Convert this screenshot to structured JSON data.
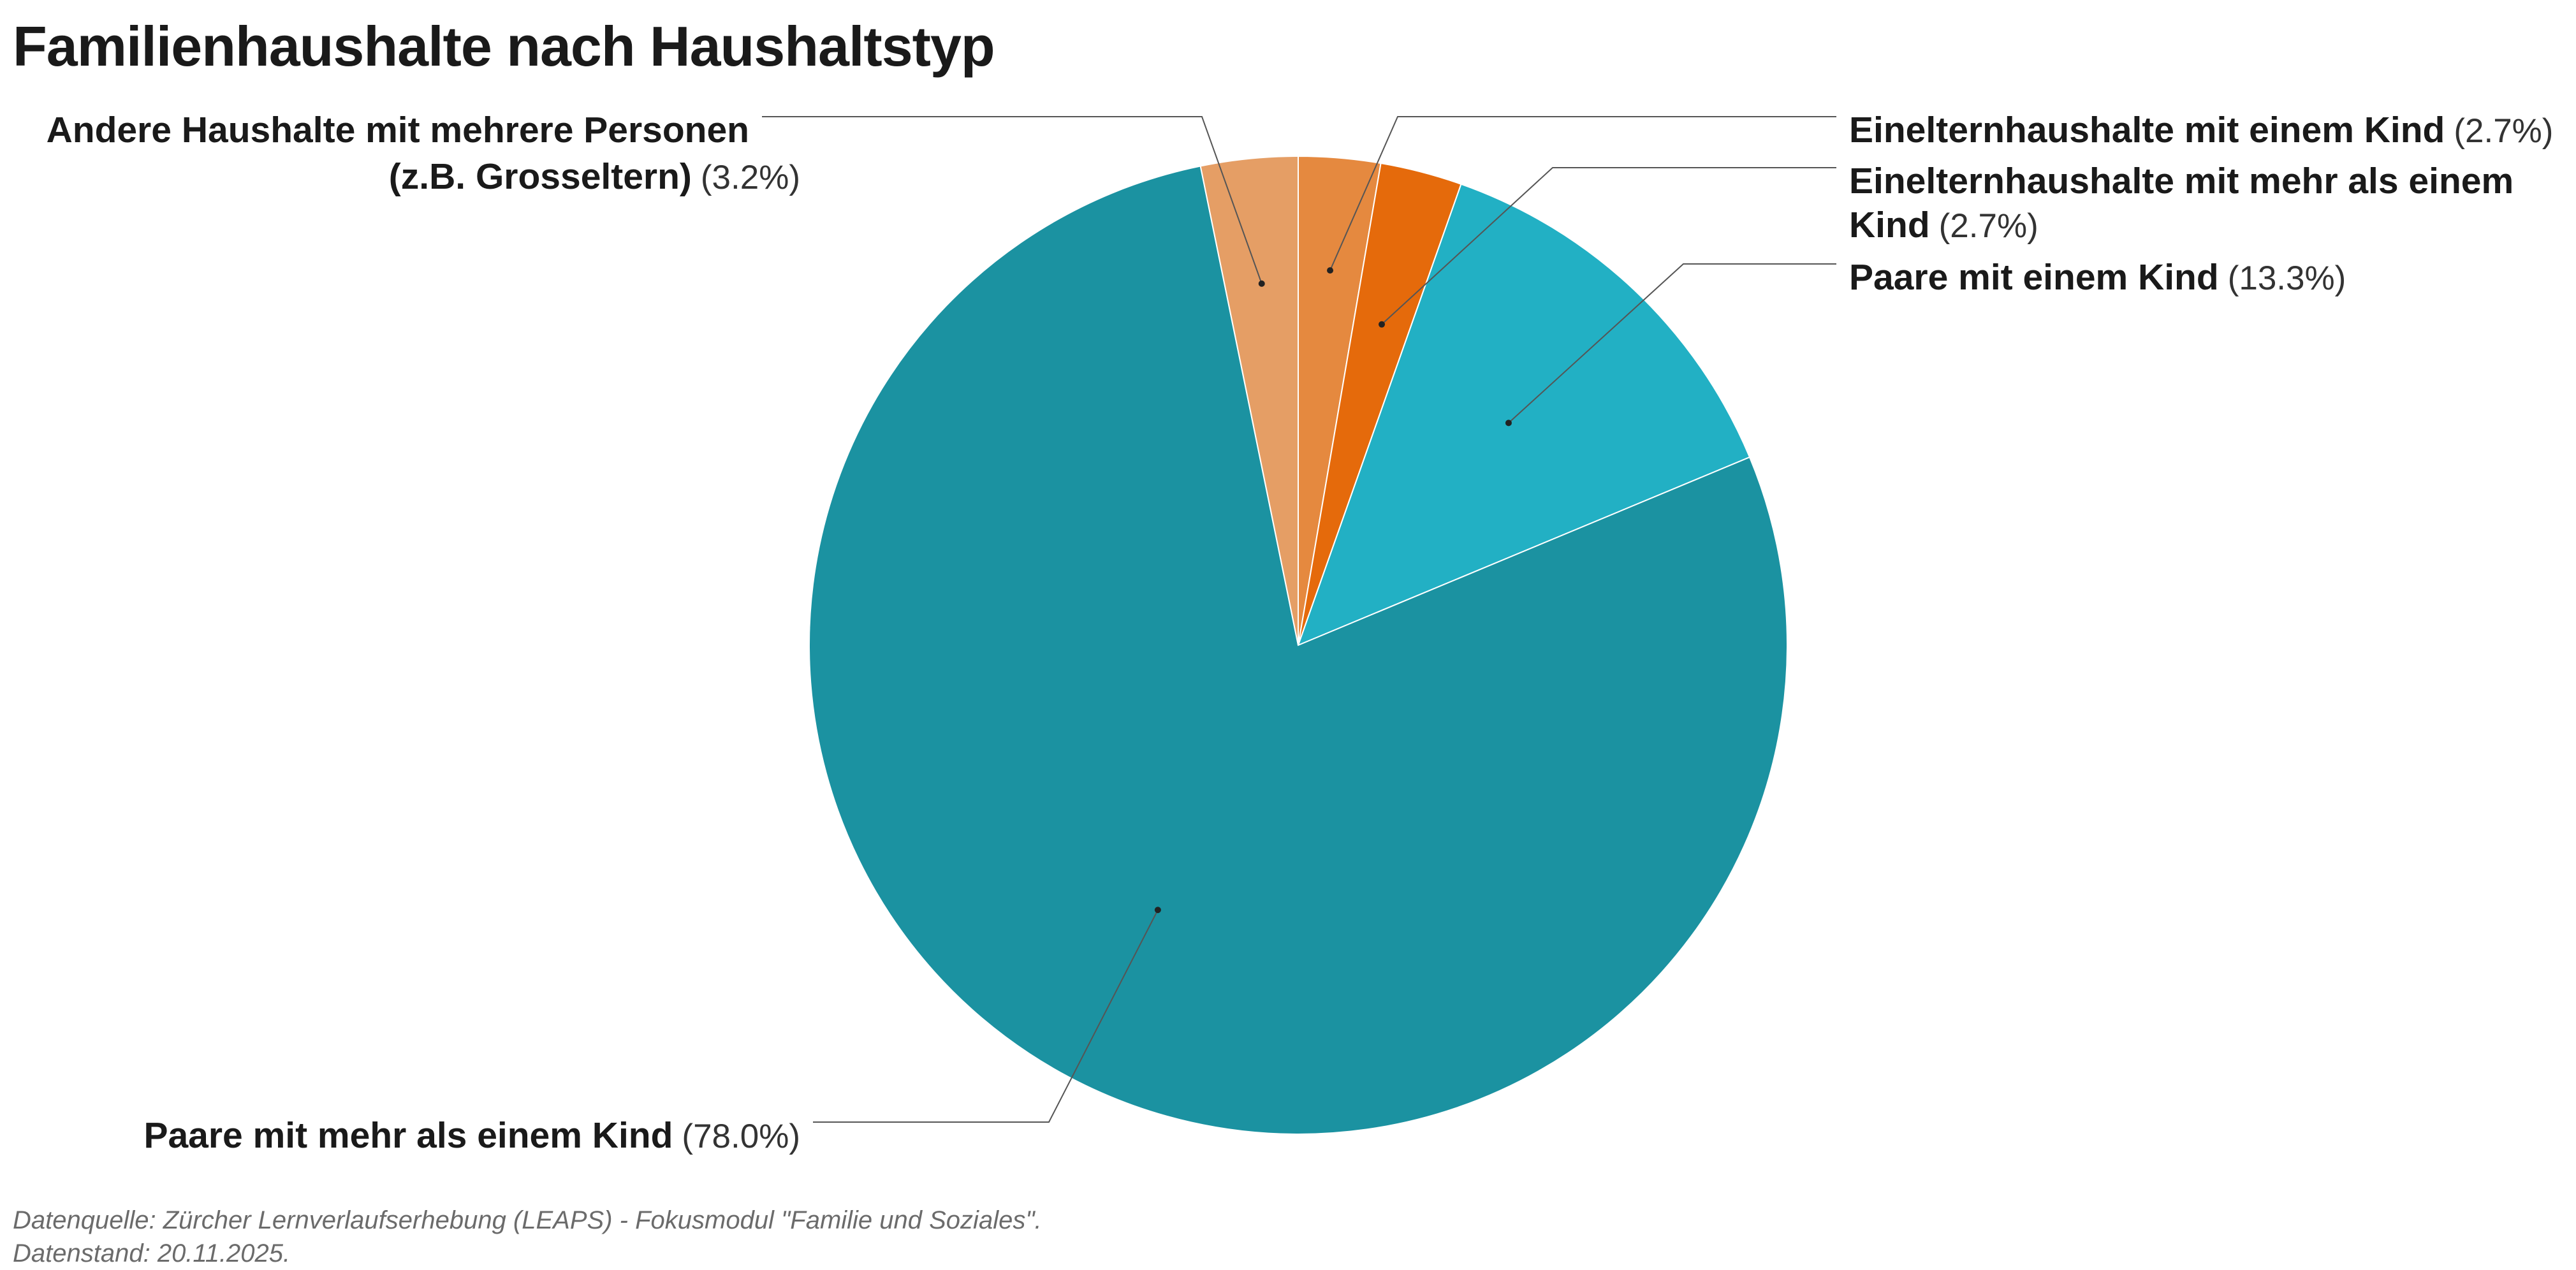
{
  "chart_data": {
    "type": "pie",
    "title": "Familienhaushalte nach Haushaltstyp",
    "slices": [
      {
        "label": "Einelternhaushalte mit einem Kind",
        "value_label": "(2.7%)",
        "value": 2.7,
        "color": "#E5893F"
      },
      {
        "label": "Einelternhaushalte mit mehr als einem Kind",
        "value_label": "(2.7%)",
        "value": 2.7,
        "color": "#E56A0B"
      },
      {
        "label": "Paare mit einem Kind",
        "value_label": "(13.3%)",
        "value": 13.3,
        "color": "#22B0C4"
      },
      {
        "label": "Paare mit mehr als einem Kind",
        "value_label": "(78.0%)",
        "value": 78.0,
        "color": "#1B92A1"
      },
      {
        "label": "Andere Haushalte mit mehrere Personen (z.B. Grosseltern)",
        "value_label": "(3.2%)",
        "value": 3.2,
        "color": "#E59E65"
      }
    ]
  },
  "footer": {
    "source": "Datenquelle: Zürcher Lernverlaufserhebung (LEAPS) - Fokusmodul \"Familie und Soziales\".",
    "date": "Datenstand: 20.11.2025."
  }
}
